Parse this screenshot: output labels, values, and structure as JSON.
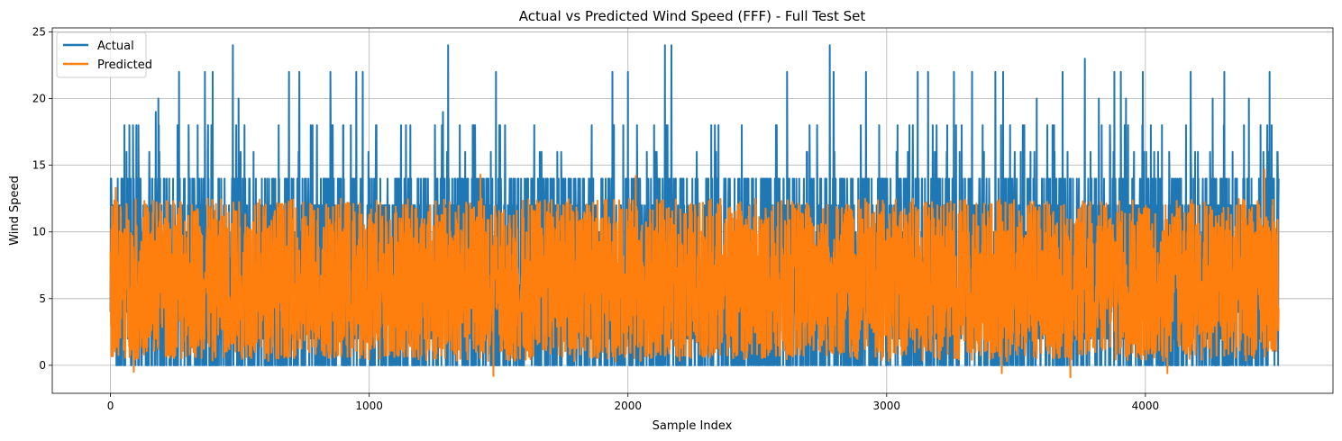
{
  "chart_data": {
    "type": "line",
    "title": "Actual vs Predicted Wind Speed (FFF) - Full Test Set",
    "xlabel": "Sample Index",
    "ylabel": "Wind Speed",
    "xlim": [
      -225,
      4725
    ],
    "ylim": [
      -2.1,
      25.3
    ],
    "xticks": [
      0,
      1000,
      2000,
      3000,
      4000
    ],
    "yticks": [
      0,
      5,
      10,
      15,
      20,
      25
    ],
    "grid": true,
    "legend_position": "top-left",
    "n_samples": 4516,
    "series": [
      {
        "name": "Actual",
        "color": "#1f77b4",
        "typical_range": [
          0,
          14
        ],
        "peaks": [
          {
            "x": 473,
            "y": 24
          },
          {
            "x": 1305,
            "y": 24
          },
          {
            "x": 2143,
            "y": 24
          },
          {
            "x": 2168,
            "y": 24
          },
          {
            "x": 2780,
            "y": 24
          },
          {
            "x": 3766,
            "y": 23
          },
          {
            "x": 265,
            "y": 22
          },
          {
            "x": 365,
            "y": 22
          },
          {
            "x": 395,
            "y": 22
          },
          {
            "x": 690,
            "y": 22
          },
          {
            "x": 730,
            "y": 22
          },
          {
            "x": 850,
            "y": 22
          },
          {
            "x": 950,
            "y": 22
          },
          {
            "x": 975,
            "y": 22
          },
          {
            "x": 1490,
            "y": 22
          },
          {
            "x": 1940,
            "y": 22
          },
          {
            "x": 2000,
            "y": 22
          },
          {
            "x": 2615,
            "y": 22
          },
          {
            "x": 2795,
            "y": 22
          },
          {
            "x": 2920,
            "y": 22
          },
          {
            "x": 3120,
            "y": 22
          },
          {
            "x": 3160,
            "y": 22
          },
          {
            "x": 3260,
            "y": 22
          },
          {
            "x": 3330,
            "y": 22
          },
          {
            "x": 3420,
            "y": 22
          },
          {
            "x": 3450,
            "y": 22
          },
          {
            "x": 3680,
            "y": 22
          },
          {
            "x": 3880,
            "y": 22
          },
          {
            "x": 3905,
            "y": 22
          },
          {
            "x": 3990,
            "y": 22
          },
          {
            "x": 4175,
            "y": 22
          },
          {
            "x": 4305,
            "y": 22
          },
          {
            "x": 4480,
            "y": 22
          },
          {
            "x": 495,
            "y": 20
          },
          {
            "x": 185,
            "y": 20
          },
          {
            "x": 175,
            "y": 19
          },
          {
            "x": 1285,
            "y": 19
          },
          {
            "x": 3580,
            "y": 20
          },
          {
            "x": 3820,
            "y": 20
          },
          {
            "x": 3925,
            "y": 20
          },
          {
            "x": 4260,
            "y": 20
          },
          {
            "x": 4400,
            "y": 20
          },
          {
            "x": 4510,
            "y": 16
          }
        ]
      },
      {
        "name": "Predicted",
        "color": "#ff7f0e",
        "typical_range": [
          0.5,
          12.5
        ],
        "extremes": [
          {
            "x": 1480,
            "y": -0.8
          },
          {
            "x": 3710,
            "y": -0.9
          },
          {
            "x": 3445,
            "y": -0.6
          },
          {
            "x": 4085,
            "y": -0.6
          },
          {
            "x": 90,
            "y": -0.5
          },
          {
            "x": 4460,
            "y": 14.7
          },
          {
            "x": 1430,
            "y": 14.3
          },
          {
            "x": 2030,
            "y": 14.2
          },
          {
            "x": 20,
            "y": 13.3
          }
        ]
      }
    ]
  }
}
